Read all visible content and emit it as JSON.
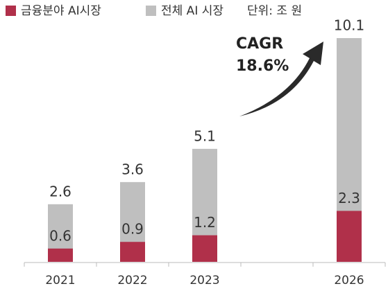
{
  "chart_data": {
    "type": "bar",
    "categories": [
      "2021",
      "2022",
      "2023",
      null,
      "2026"
    ],
    "series": [
      {
        "name": "전체 AI 시장",
        "color": "#bfbfbf",
        "values": [
          2.6,
          3.6,
          5.1,
          null,
          10.1
        ]
      },
      {
        "name": "금융분야 AI시장",
        "color": "#b0304a",
        "values": [
          0.6,
          0.9,
          1.2,
          null,
          2.3
        ]
      }
    ],
    "unit_note": "단위: 조 원",
    "annotation": [
      "CAGR",
      "18.6%"
    ],
    "ylim": [
      0,
      10.1
    ]
  }
}
